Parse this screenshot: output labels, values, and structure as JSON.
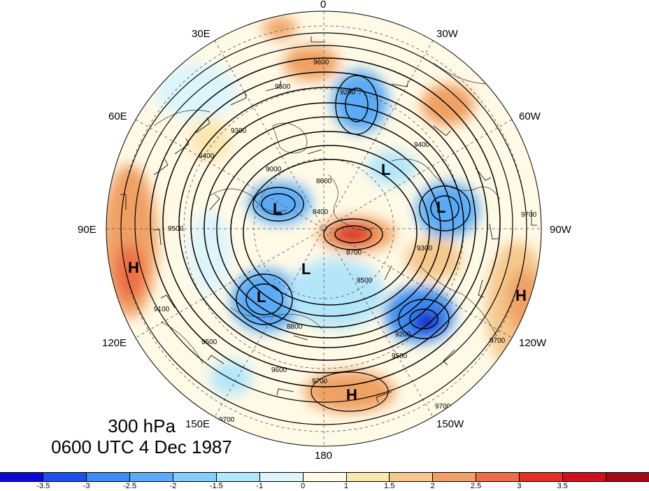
{
  "title": {
    "level": "300 hPa",
    "time": "0600 UTC 4 Dec 1987"
  },
  "longitude_labels": [
    {
      "key": "lon-0",
      "text": "0"
    },
    {
      "key": "lon-30w",
      "text": "30W"
    },
    {
      "key": "lon-60w",
      "text": "60W"
    },
    {
      "key": "lon-90w",
      "text": "90W"
    },
    {
      "key": "lon-120w",
      "text": "120W"
    },
    {
      "key": "lon-150w",
      "text": "150W"
    },
    {
      "key": "lon-180",
      "text": "180"
    },
    {
      "key": "lon-150e",
      "text": "150E"
    },
    {
      "key": "lon-120e",
      "text": "120E"
    },
    {
      "key": "lon-90e",
      "text": "90E"
    },
    {
      "key": "lon-60e",
      "text": "60E"
    },
    {
      "key": "lon-30e",
      "text": "30E"
    }
  ],
  "pressure_systems": [
    "L",
    "L",
    "L",
    "L",
    "L",
    "H",
    "H",
    "H"
  ],
  "contour_labels": [
    "9600",
    "9500",
    "9200",
    "9300",
    "9400",
    "9000",
    "8600",
    "8400",
    "8500",
    "8700",
    "8800",
    "9700",
    "9100"
  ],
  "colorbar": {
    "colors": [
      "#0a0ad2",
      "#1e50e6",
      "#3c8cf0",
      "#5aaaf5",
      "#82cdfa",
      "#b4e6fa",
      "#dcf5fa",
      "#fffae6",
      "#fae6af",
      "#f5c88c",
      "#f0a064",
      "#eb6e46",
      "#dc3228",
      "#c8141e",
      "#a00a14"
    ],
    "labels": [
      "-3.5",
      "-3",
      "-2.5",
      "-2",
      "-1.5",
      "-1",
      "0",
      "1",
      "1.5",
      "2",
      "2.5",
      "3",
      "3.5"
    ]
  }
}
